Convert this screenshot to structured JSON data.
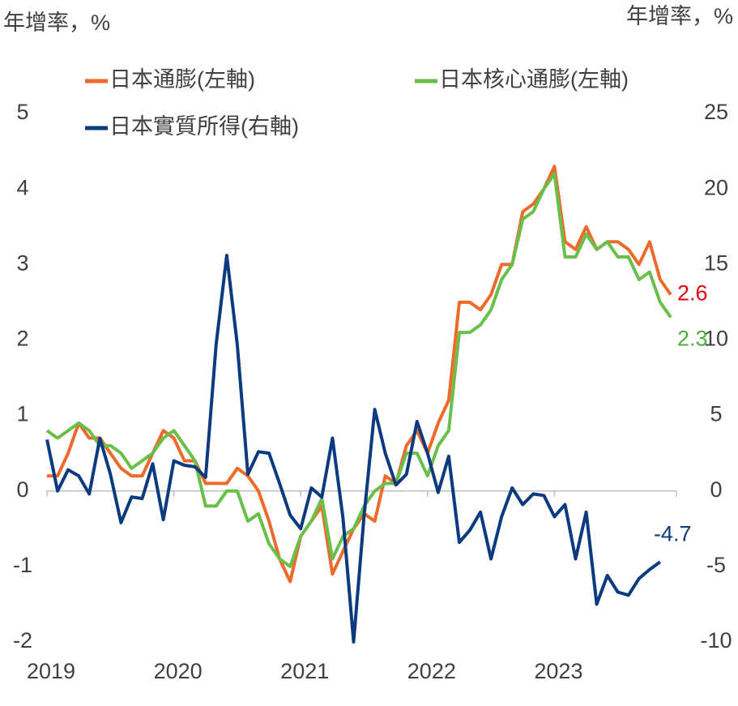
{
  "chart_data": {
    "type": "line",
    "y_label": "年增率，%",
    "y2_label": "年增率，%",
    "categories": [
      "2019",
      null,
      null,
      null,
      null,
      null,
      null,
      null,
      null,
      null,
      null,
      null,
      "2020",
      null,
      null,
      null,
      null,
      null,
      null,
      null,
      null,
      null,
      null,
      null,
      "2021",
      null,
      null,
      null,
      null,
      null,
      null,
      null,
      null,
      null,
      null,
      null,
      "2022",
      null,
      null,
      null,
      null,
      null,
      null,
      null,
      null,
      null,
      null,
      null,
      "2023",
      null,
      null,
      null,
      null,
      null,
      null,
      null,
      null,
      null,
      null,
      null
    ],
    "ylim": [
      -2,
      5
    ],
    "yticks": [
      -2,
      -1,
      0,
      1,
      2,
      3,
      4,
      5
    ],
    "y2lim": [
      -10,
      25
    ],
    "y2ticks": [
      -10,
      -5,
      0,
      5,
      10,
      15,
      20,
      25
    ],
    "series": [
      {
        "name": "日本通膨(左軸)",
        "color": "#ee6a2a",
        "label_color": "#e3000f",
        "values": [
          0.2,
          0.2,
          0.5,
          0.9,
          0.7,
          0.7,
          0.5,
          0.3,
          0.2,
          0.2,
          0.5,
          0.8,
          0.7,
          0.4,
          0.4,
          0.1,
          0.1,
          0.1,
          0.3,
          0.2,
          0.0,
          -0.4,
          -0.9,
          -1.2,
          -0.6,
          -0.4,
          -0.2,
          -1.1,
          -0.8,
          -0.5,
          -0.3,
          -0.4,
          0.2,
          0.1,
          0.6,
          0.8,
          0.5,
          0.9,
          1.2,
          2.5,
          2.5,
          2.4,
          2.6,
          3.0,
          3.0,
          3.7,
          3.8,
          4.0,
          4.3,
          3.3,
          3.2,
          3.5,
          3.2,
          3.3,
          3.3,
          3.2,
          3.0,
          3.3,
          2.8,
          2.6
        ]
      },
      {
        "name": "日本核心通膨(左軸)",
        "color": "#6abf4b",
        "label_color": "#4caf3c",
        "values": [
          0.8,
          0.7,
          0.8,
          0.9,
          0.8,
          0.6,
          0.6,
          0.5,
          0.3,
          0.4,
          0.5,
          0.7,
          0.8,
          0.6,
          0.4,
          -0.2,
          -0.2,
          0.0,
          0.0,
          -0.4,
          -0.3,
          -0.7,
          -0.9,
          -1.0,
          -0.6,
          -0.4,
          -0.1,
          -0.9,
          -0.6,
          -0.5,
          -0.2,
          0.0,
          0.1,
          0.1,
          0.5,
          0.5,
          0.2,
          0.6,
          0.8,
          2.1,
          2.1,
          2.2,
          2.4,
          2.8,
          3.0,
          3.6,
          3.7,
          4.0,
          4.2,
          3.1,
          3.1,
          3.4,
          3.2,
          3.3,
          3.1,
          3.1,
          2.8,
          2.9,
          2.5,
          2.3
        ]
      },
      {
        "name": "日本實質所得(右軸)",
        "color": "#0b3a7e",
        "label_color": "#0b3a7e",
        "axis": "y2",
        "values": [
          3.4,
          0.0,
          1.4,
          1.0,
          -0.2,
          3.5,
          1.1,
          -2.1,
          -0.4,
          -0.5,
          1.8,
          -1.9,
          2.0,
          1.7,
          1.6,
          0.9,
          9.7,
          15.6,
          9.7,
          1.1,
          2.6,
          2.5,
          0.5,
          -1.6,
          -2.5,
          0.2,
          -0.4,
          3.5,
          -1.8,
          -10.0,
          -1.6,
          5.4,
          2.5,
          0.4,
          1.1,
          4.6,
          2.5,
          -0.1,
          2.3,
          -3.4,
          -2.6,
          -1.4,
          -4.5,
          -1.7,
          0.2,
          -0.9,
          -0.2,
          -0.3,
          -1.7,
          -0.9,
          -4.5,
          -1.4,
          -7.5,
          -5.6,
          -6.7,
          -6.9,
          -5.8,
          -5.2,
          -4.7,
          null
        ]
      }
    ]
  }
}
